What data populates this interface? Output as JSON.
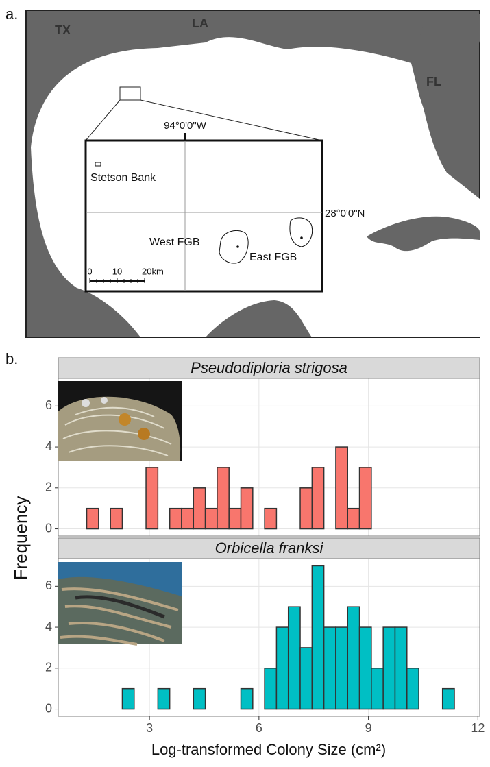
{
  "map": {
    "panel_label": "a.",
    "states": [
      "TX",
      "LA",
      "FL"
    ],
    "inset": {
      "longitude": "94°0'0\"W",
      "latitude": "28°0'0\"N",
      "sites": [
        "Stetson Bank",
        "West FGB",
        "East FGB"
      ],
      "scale_labels": [
        "0",
        "10",
        "20km"
      ]
    }
  },
  "chart_data": {
    "type": "histogram",
    "panel_label": "b.",
    "xlabel": "Log-transformed Colony Size (cm²)",
    "ylabel": "Frequency",
    "bins": [
      0.955,
      1.28,
      1.605,
      1.93,
      2.255,
      2.58,
      2.905,
      3.23,
      3.555,
      3.88,
      4.205,
      4.53,
      4.855,
      5.18,
      5.505,
      5.83,
      6.155,
      6.48,
      6.805,
      7.13,
      7.455,
      7.78,
      8.105,
      8.43,
      8.755,
      9.08,
      9.405,
      9.73,
      10.055,
      10.38,
      10.705,
      11.03,
      11.355,
      11.68
    ],
    "series": [
      {
        "name": "Pseudodiploria strigosa",
        "color": "#f8766d",
        "values": [
          0,
          1,
          0,
          1,
          0,
          0,
          3,
          0,
          1,
          1,
          2,
          1,
          3,
          1,
          2,
          0,
          1,
          0,
          0,
          2,
          3,
          0,
          4,
          1,
          3,
          0,
          0,
          0,
          0,
          0,
          0,
          0,
          0
        ]
      },
      {
        "name": "Orbicella franksi",
        "color": "#00bfc4",
        "values": [
          0,
          0,
          0,
          0,
          1,
          0,
          0,
          1,
          0,
          0,
          1,
          0,
          0,
          0,
          1,
          0,
          2,
          4,
          5,
          3,
          7,
          4,
          4,
          5,
          4,
          2,
          4,
          4,
          2,
          0,
          0,
          1,
          0
        ]
      }
    ],
    "xlim": [
      0.5,
      12.05
    ],
    "xticks": [
      3,
      6,
      9,
      12
    ],
    "ylim": [
      -0.35,
      7.35
    ],
    "yticks": [
      0,
      2,
      4,
      6
    ],
    "grid": true
  }
}
